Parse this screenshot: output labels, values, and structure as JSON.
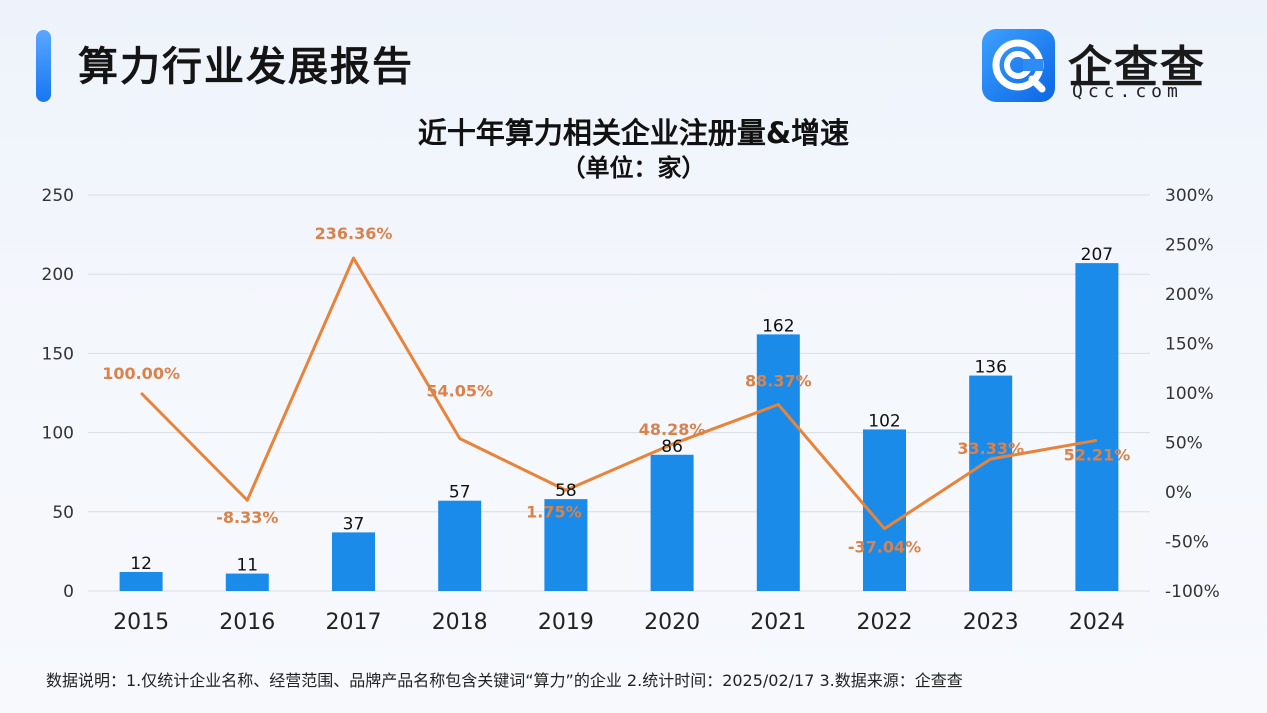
{
  "header": {
    "title": "算力行业发展报告",
    "logo_name": "企查查",
    "logo_domain": "Qcc.com"
  },
  "colors": {
    "bar": "#1a8be8",
    "line": "#e8833a",
    "accent": "#1677f2"
  },
  "chart_data": {
    "type": "bar",
    "title": "近十年算力相关企业注册量&增速",
    "subtitle": "（单位：家）",
    "categories": [
      "2015",
      "2016",
      "2017",
      "2018",
      "2019",
      "2020",
      "2021",
      "2022",
      "2023",
      "2024"
    ],
    "series": [
      {
        "type": "bar",
        "axis": "left",
        "values": [
          12,
          11,
          37,
          57,
          58,
          86,
          162,
          102,
          136,
          207
        ],
        "labels": [
          "12",
          "11",
          "37",
          "57",
          "58",
          "86",
          "162",
          "102",
          "136",
          "207"
        ]
      },
      {
        "type": "line",
        "axis": "right",
        "values": [
          100.0,
          -8.33,
          236.36,
          54.05,
          1.75,
          48.28,
          88.37,
          -37.04,
          33.33,
          52.21
        ],
        "labels": [
          "100.00%",
          "-8.33%",
          "236.36%",
          "54.05%",
          "1.75%",
          "48.28%",
          "88.37%",
          "-37.04%",
          "33.33%",
          "52.21%"
        ]
      }
    ],
    "y_left": {
      "min": 0,
      "max": 250,
      "ticks": [
        "0",
        "50",
        "100",
        "150",
        "200",
        "250"
      ]
    },
    "y_right": {
      "min": -100,
      "max": 300,
      "ticks": [
        "-100%",
        "-50%",
        "0%",
        "50%",
        "100%",
        "150%",
        "200%",
        "250%",
        "300%"
      ]
    },
    "grid": true,
    "legend": "none"
  },
  "footnote": "数据说明：1.仅统计企业名称、经营范围、品牌产品名称包含关键词“算力”的企业   2.统计时间：2025/02/17    3.数据来源：企查查"
}
